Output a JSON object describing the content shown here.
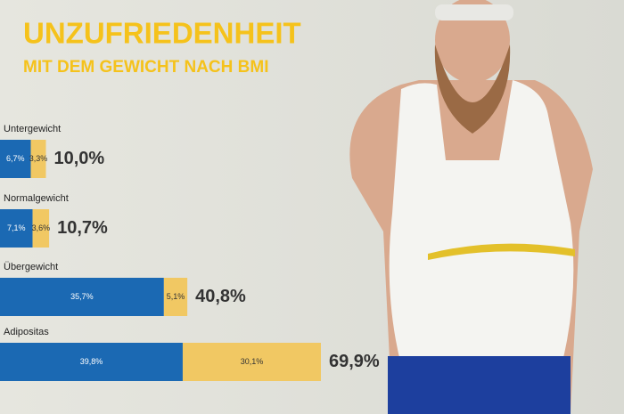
{
  "chart_data": {
    "type": "stacked-bar-horizontal",
    "title": "UNZUFRIEDENHEIT",
    "subtitle": "MIT DEM GEWICHT NACH BMI",
    "categories": [
      "Untergewicht",
      "Normalgewicht",
      "Übergewicht",
      "Adipositas"
    ],
    "series": [
      {
        "color": "#1b69b3",
        "values": [
          6.7,
          7.1,
          35.7,
          39.8
        ],
        "value_labels": [
          "6,7%",
          "7,1%",
          "35,7%",
          "39,8%"
        ]
      },
      {
        "color": "#f1c863",
        "values": [
          3.3,
          3.6,
          5.1,
          30.1
        ],
        "value_labels": [
          "3,3%",
          "3,6%",
          "5,1%",
          "30,1%"
        ]
      }
    ],
    "totals": [
      10.0,
      10.7,
      40.8,
      69.9
    ],
    "total_labels": [
      "10,0%",
      "10,7%",
      "40,8%",
      "69,9%"
    ]
  }
}
